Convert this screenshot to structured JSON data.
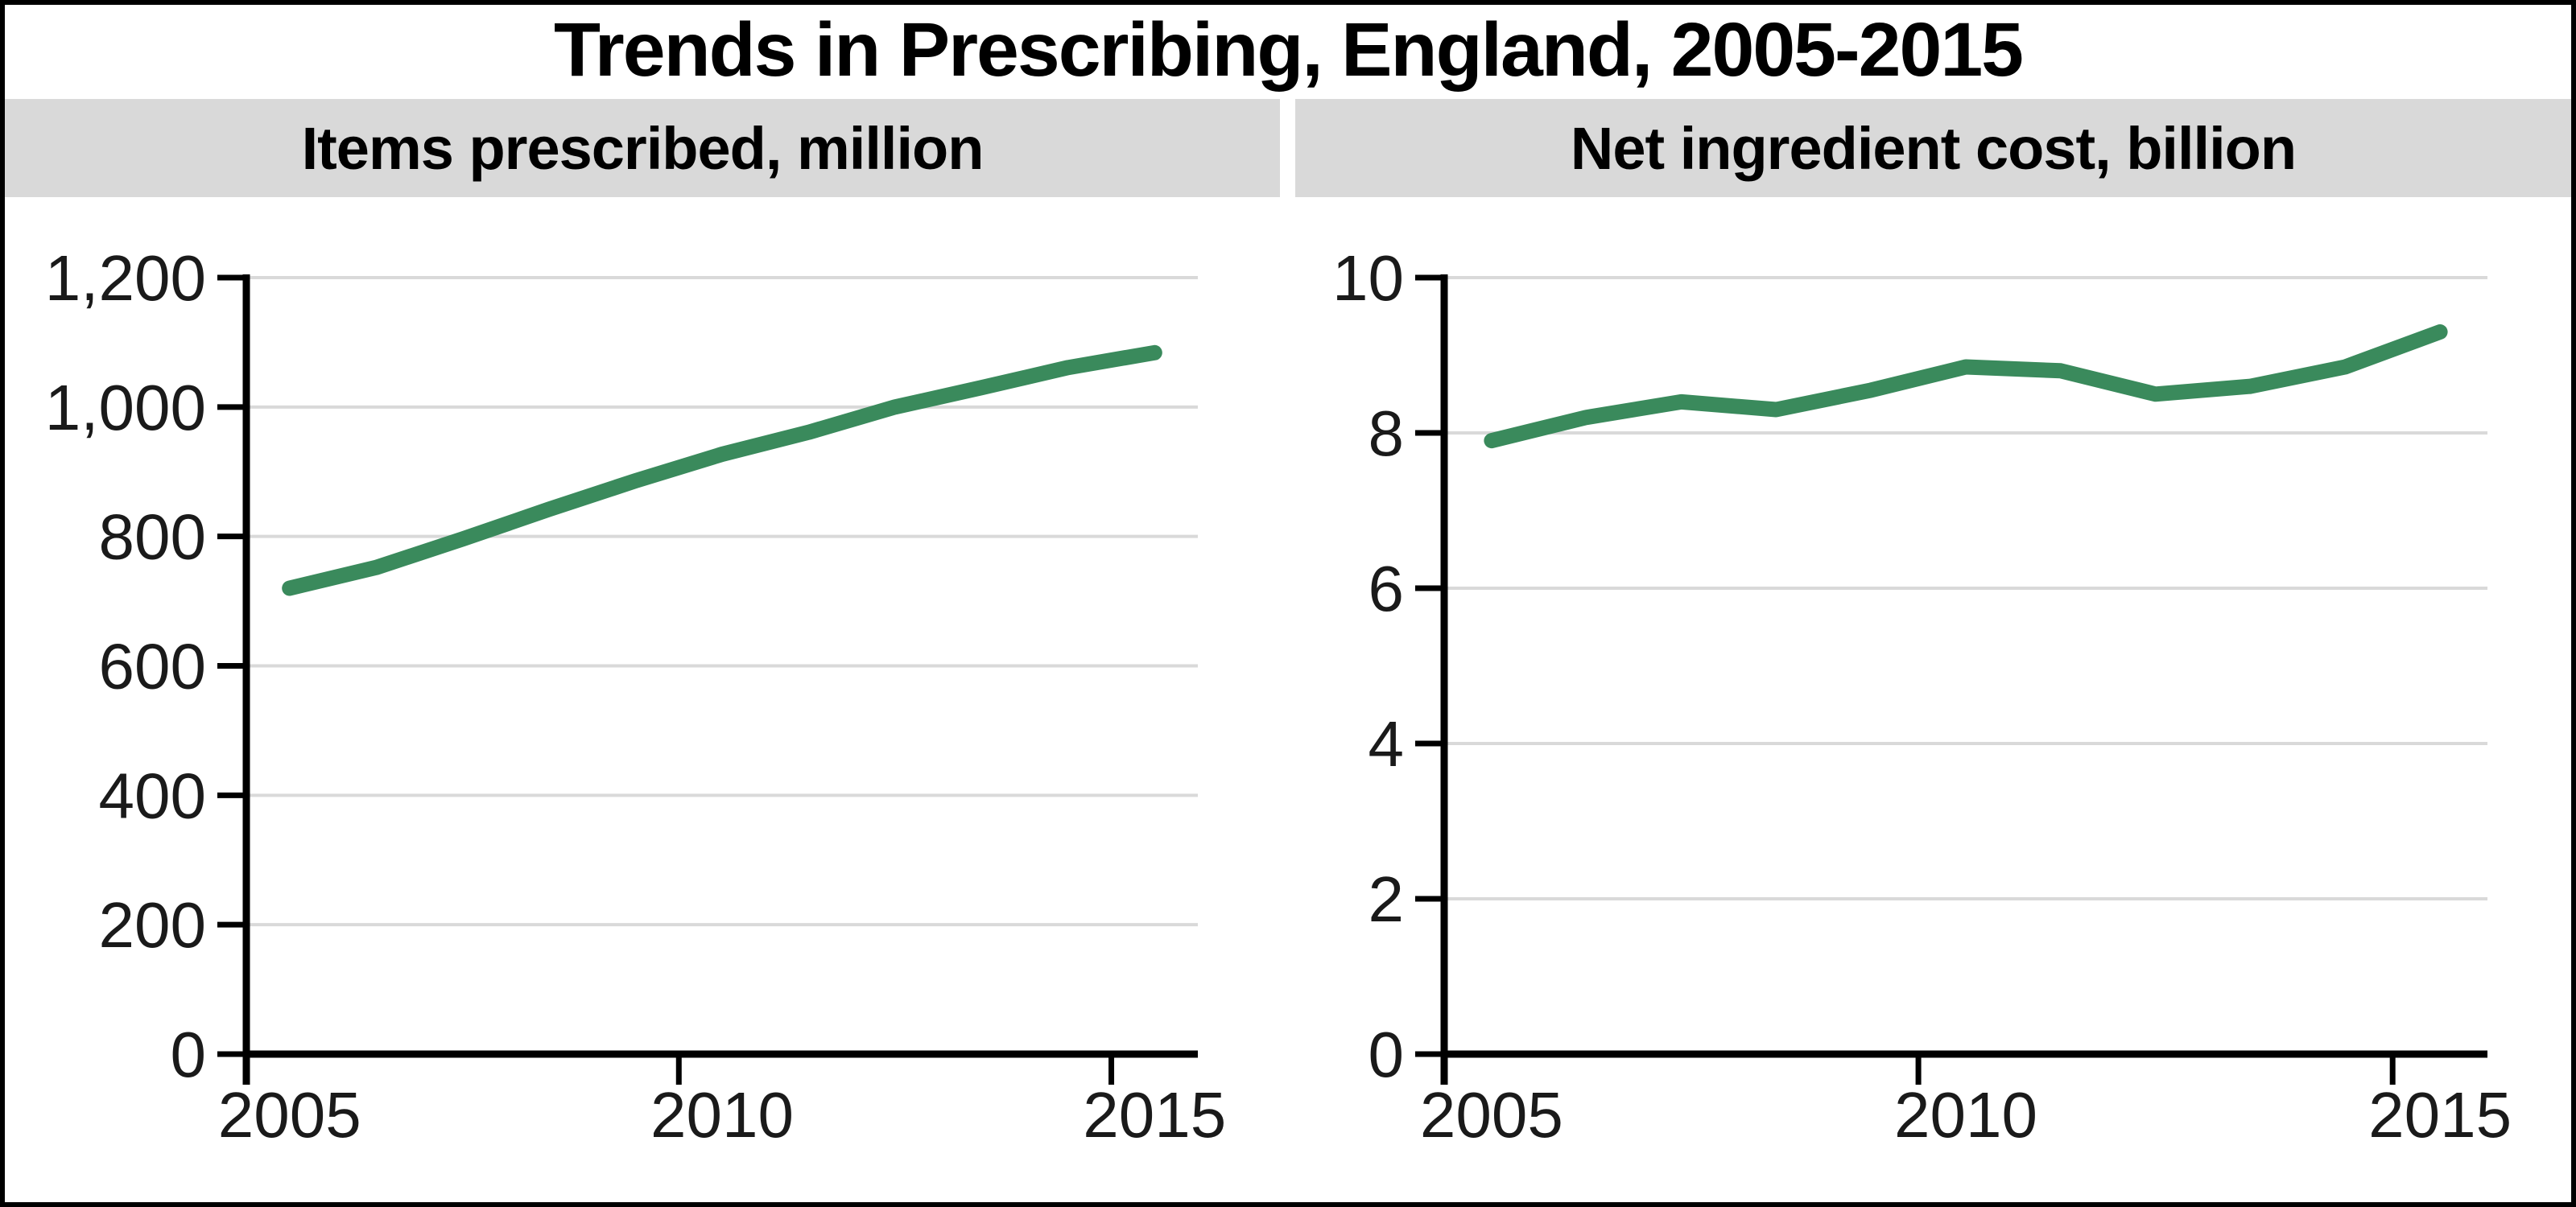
{
  "title": "Trends in Prescribing, England, 2005-2015",
  "panels": [
    {
      "header": "Items prescribed, million"
    },
    {
      "header": "Net ingredient cost, billion"
    }
  ],
  "colors": {
    "line_green": "#3A8A5C",
    "gridline_gray": "#D9D9D9",
    "header_bar_gray": "#D9D9D9",
    "axis_black": "#000000",
    "text_black": "#1A1A1A",
    "background": "#FFFFFF"
  },
  "chart_data": [
    {
      "type": "line",
      "title": "Items prescribed, million",
      "x": [
        2005,
        2006,
        2007,
        2008,
        2009,
        2010,
        2011,
        2012,
        2013,
        2014,
        2015
      ],
      "values": [
        720,
        752,
        796,
        842,
        886,
        927,
        961,
        1000,
        1030,
        1061,
        1084
      ],
      "ylim": [
        0,
        1200
      ],
      "y_ticks": [
        0,
        200,
        400,
        600,
        800,
        1000,
        1200
      ],
      "y_tick_labels": [
        "0",
        "200",
        "400",
        "600",
        "800",
        "1,000",
        "1,200"
      ],
      "x_tick_years": [
        2005,
        2010,
        2015
      ],
      "x_tick_labels": [
        "2005",
        "2010",
        "2015"
      ],
      "grid": true,
      "legend": "none"
    },
    {
      "type": "line",
      "title": "Net ingredient cost, billion",
      "x": [
        2005,
        2006,
        2007,
        2008,
        2009,
        2010,
        2011,
        2012,
        2013,
        2014,
        2015
      ],
      "values": [
        7.9,
        8.2,
        8.4,
        8.3,
        8.55,
        8.85,
        8.8,
        8.5,
        8.6,
        8.85,
        9.3
      ],
      "ylim": [
        0,
        10
      ],
      "y_ticks": [
        0,
        2,
        4,
        6,
        8,
        10
      ],
      "y_tick_labels": [
        "0",
        "2",
        "4",
        "6",
        "8",
        "10"
      ],
      "x_tick_years": [
        2005,
        2010,
        2015
      ],
      "x_tick_labels": [
        "2005",
        "2010",
        "2015"
      ],
      "grid": true,
      "legend": "none"
    }
  ]
}
